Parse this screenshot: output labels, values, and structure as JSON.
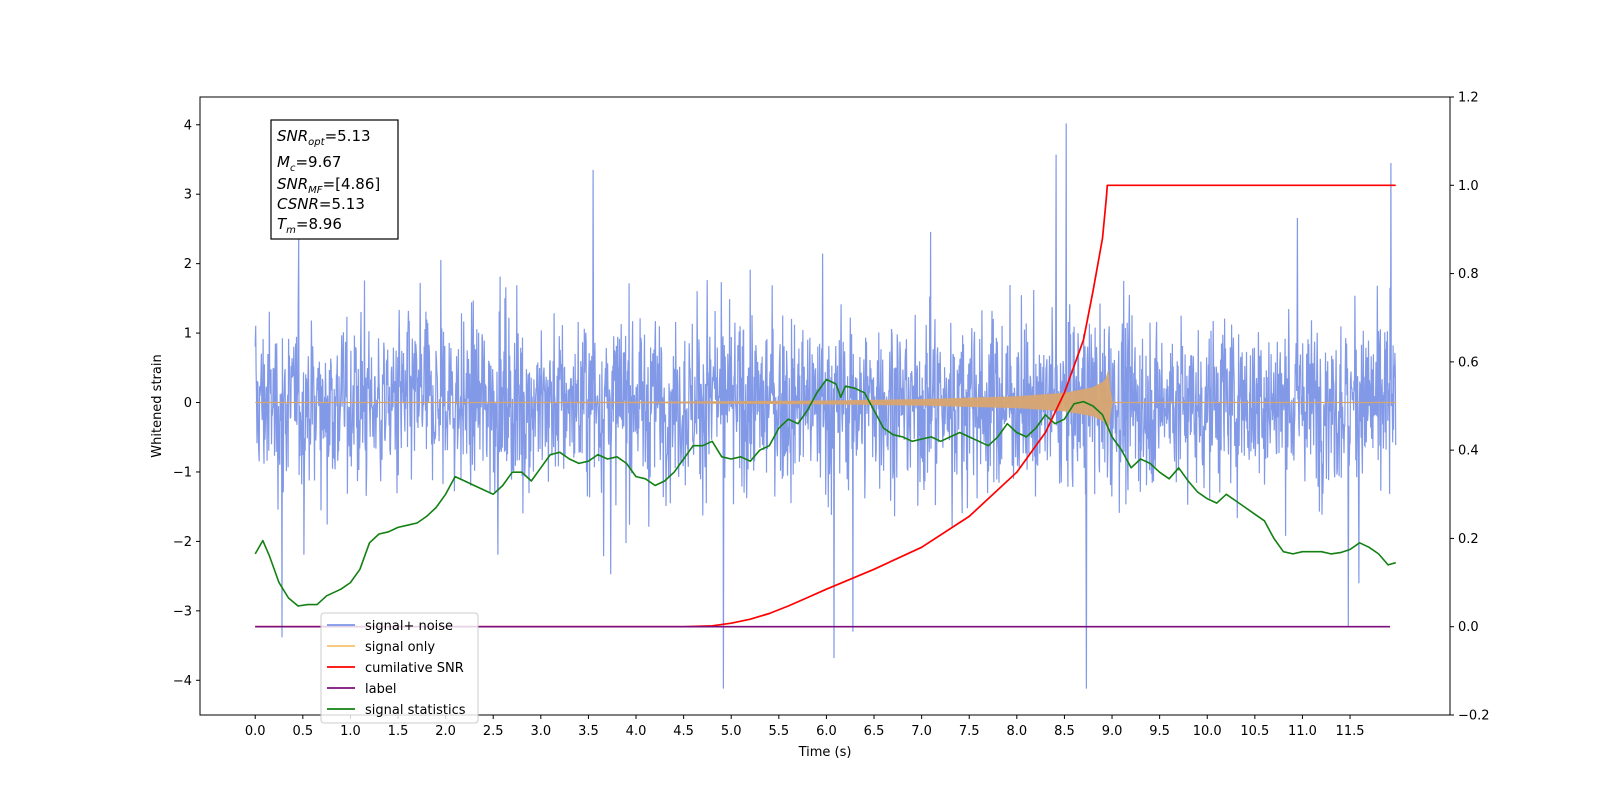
{
  "chart_data": {
    "type": "line",
    "xlabel": "Time (s)",
    "ylabel": "Whitened strain",
    "xlim": [
      -0.58,
      12.55
    ],
    "ylim": [
      -4.5,
      4.4
    ],
    "y2lim": [
      -0.2,
      1.2
    ],
    "x_ticks": [
      0.0,
      0.5,
      1.0,
      1.5,
      2.0,
      2.5,
      3.0,
      3.5,
      4.0,
      4.5,
      5.0,
      5.5,
      6.0,
      6.5,
      7.0,
      7.5,
      8.0,
      8.5,
      9.0,
      9.5,
      10.0,
      10.5,
      11.0,
      11.5
    ],
    "x_tick_labels": [
      "0.0",
      "0.5",
      "1.0",
      "1.5",
      "2.0",
      "2.5",
      "3.0",
      "3.5",
      "4.0",
      "4.5",
      "5.0",
      "5.5",
      "6.0",
      "6.5",
      "7.0",
      "7.5",
      "8.0",
      "8.5",
      "9.0",
      "9.5",
      "10.0",
      "10.5",
      "11.0",
      "11.5"
    ],
    "y_ticks": [
      -4,
      -3,
      -2,
      -1,
      0,
      1,
      2,
      3,
      4
    ],
    "y_tick_labels": [
      "−4",
      "−3",
      "−2",
      "−1",
      "0",
      "1",
      "2",
      "3",
      "4"
    ],
    "y2_ticks": [
      -0.2,
      0.0,
      0.2,
      0.4,
      0.6,
      0.8,
      1.0,
      1.2
    ],
    "y2_tick_labels": [
      "−0.2",
      "0.0",
      "0.2",
      "0.4",
      "0.6",
      "0.8",
      "1.0",
      "1.2"
    ],
    "grid": false,
    "legend_position": "lower-left",
    "legend": [
      {
        "label": "signal+ noise",
        "color": "#7b94e6"
      },
      {
        "label": "signal only",
        "color": "#f6c36e"
      },
      {
        "label": "cumilative SNR",
        "color": "#ff0000"
      },
      {
        "label": "label",
        "color": "#7b0e7b"
      },
      {
        "label": "signal statistics",
        "color": "#138013"
      }
    ],
    "annotation": {
      "snr_opt": {
        "base": "SNR",
        "sub": "opt",
        "value": "=5.13"
      },
      "mc": {
        "base": "M",
        "sub": "c",
        "value": "=9.67"
      },
      "snr_mf": {
        "base": "SNR",
        "sub": "MF",
        "value": "=[4.86]"
      },
      "csnr": {
        "base": "CSNR",
        "value": "=5.13"
      },
      "tm": {
        "base": "T",
        "sub": "m",
        "value": "=8.96"
      }
    },
    "series": [
      {
        "name": "signal+ noise",
        "axis": "left",
        "color": "#7b94e6",
        "description_x_range": [
          0.0,
          11.98
        ],
        "envelope_typical": [
          -2.2,
          2.4
        ],
        "notable_peaks": [
          {
            "x": 8.52,
            "y": 4.02
          },
          {
            "x": 11.93,
            "y": 3.45
          },
          {
            "x": 8.41,
            "y": 3.57
          },
          {
            "x": 3.55,
            "y": 3.35
          },
          {
            "x": 4.92,
            "y": -4.12
          },
          {
            "x": 8.73,
            "y": -4.12
          },
          {
            "x": 6.08,
            "y": -3.68
          },
          {
            "x": 0.28,
            "y": -3.38
          },
          {
            "x": 6.28,
            "y": -3.3
          },
          {
            "x": 11.48,
            "y": -3.22
          }
        ]
      },
      {
        "name": "signal only",
        "axis": "left",
        "color": "#d8a570",
        "x": [
          0.0,
          2.0,
          4.0,
          5.0,
          6.0,
          7.0,
          8.0,
          8.5,
          8.8,
          8.93,
          8.96,
          9.0,
          10.0,
          11.98
        ],
        "amplitude": [
          0.0,
          0.005,
          0.01,
          0.02,
          0.03,
          0.05,
          0.09,
          0.14,
          0.22,
          0.32,
          0.5,
          0.0,
          0.0,
          0.0
        ]
      },
      {
        "name": "cumilative SNR",
        "axis": "right",
        "color": "#ff0000",
        "x": [
          0.0,
          4.0,
          4.5,
          4.8,
          5.0,
          5.2,
          5.4,
          5.6,
          5.8,
          6.0,
          6.5,
          7.0,
          7.5,
          8.0,
          8.3,
          8.5,
          8.7,
          8.8,
          8.9,
          8.94,
          8.95,
          10.0,
          11.98
        ],
        "values": [
          0.0,
          0.0,
          0.0,
          0.002,
          0.008,
          0.017,
          0.03,
          0.047,
          0.066,
          0.085,
          0.13,
          0.18,
          0.25,
          0.35,
          0.44,
          0.53,
          0.65,
          0.76,
          0.88,
          0.97,
          1.0,
          1.0,
          1.0
        ]
      },
      {
        "name": "label",
        "axis": "right",
        "color": "#7b0e7b",
        "x": [
          0.0,
          11.92
        ],
        "values": [
          0.0,
          0.0
        ]
      },
      {
        "name": "signal statistics",
        "axis": "right",
        "color": "#138013",
        "x": [
          0.0,
          0.08,
          0.15,
          0.25,
          0.35,
          0.45,
          0.55,
          0.65,
          0.75,
          0.9,
          1.0,
          1.1,
          1.2,
          1.3,
          1.4,
          1.5,
          1.6,
          1.7,
          1.8,
          1.9,
          2.0,
          2.1,
          2.2,
          2.3,
          2.4,
          2.5,
          2.6,
          2.7,
          2.8,
          2.9,
          3.0,
          3.1,
          3.2,
          3.3,
          3.4,
          3.5,
          3.6,
          3.7,
          3.8,
          3.9,
          4.0,
          4.1,
          4.2,
          4.3,
          4.4,
          4.5,
          4.6,
          4.7,
          4.8,
          4.9,
          5.0,
          5.1,
          5.2,
          5.3,
          5.4,
          5.5,
          5.6,
          5.7,
          5.8,
          5.9,
          6.0,
          6.1,
          6.15,
          6.2,
          6.3,
          6.4,
          6.5,
          6.6,
          6.7,
          6.8,
          6.9,
          7.0,
          7.1,
          7.2,
          7.3,
          7.4,
          7.5,
          7.6,
          7.7,
          7.8,
          7.9,
          8.0,
          8.1,
          8.2,
          8.3,
          8.4,
          8.5,
          8.6,
          8.7,
          8.8,
          8.9,
          9.0,
          9.1,
          9.2,
          9.3,
          9.4,
          9.5,
          9.6,
          9.7,
          9.8,
          9.9,
          10.0,
          10.1,
          10.2,
          10.3,
          10.4,
          10.5,
          10.6,
          10.7,
          10.8,
          10.9,
          11.0,
          11.1,
          11.2,
          11.3,
          11.4,
          11.5,
          11.6,
          11.7,
          11.8,
          11.9,
          11.98
        ],
        "values": [
          0.165,
          0.195,
          0.16,
          0.1,
          0.065,
          0.047,
          0.05,
          0.05,
          0.07,
          0.085,
          0.1,
          0.13,
          0.19,
          0.21,
          0.215,
          0.225,
          0.23,
          0.235,
          0.25,
          0.27,
          0.3,
          0.34,
          0.33,
          0.32,
          0.31,
          0.3,
          0.32,
          0.35,
          0.35,
          0.33,
          0.36,
          0.39,
          0.395,
          0.38,
          0.37,
          0.375,
          0.39,
          0.38,
          0.385,
          0.37,
          0.34,
          0.335,
          0.32,
          0.33,
          0.35,
          0.38,
          0.41,
          0.41,
          0.42,
          0.385,
          0.38,
          0.385,
          0.375,
          0.4,
          0.41,
          0.45,
          0.47,
          0.46,
          0.49,
          0.53,
          0.56,
          0.55,
          0.52,
          0.545,
          0.54,
          0.53,
          0.49,
          0.45,
          0.435,
          0.43,
          0.42,
          0.425,
          0.43,
          0.42,
          0.43,
          0.44,
          0.43,
          0.42,
          0.41,
          0.43,
          0.46,
          0.44,
          0.43,
          0.45,
          0.48,
          0.46,
          0.47,
          0.505,
          0.51,
          0.5,
          0.48,
          0.43,
          0.4,
          0.36,
          0.38,
          0.37,
          0.35,
          0.335,
          0.36,
          0.33,
          0.305,
          0.29,
          0.28,
          0.3,
          0.285,
          0.27,
          0.255,
          0.24,
          0.2,
          0.17,
          0.165,
          0.17,
          0.17,
          0.17,
          0.165,
          0.168,
          0.175,
          0.19,
          0.18,
          0.165,
          0.14,
          0.145
        ]
      }
    ]
  }
}
